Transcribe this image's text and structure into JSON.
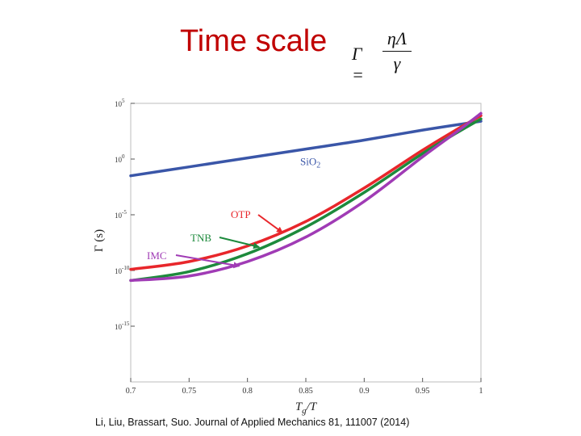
{
  "slide": {
    "title": "Time scale",
    "formula": {
      "lhs": "Γ =",
      "numerator": "ηΛ",
      "denominator": "γ"
    },
    "caption": "Li, Liu, Brassart, Suo.  Journal of Applied Mechanics 81, 111007 (2014)"
  },
  "chart_data": {
    "type": "line",
    "title": "",
    "xlabel": "T_g/T",
    "ylabel": "Γ (s)",
    "xlim": [
      0.7,
      1.0
    ],
    "ylim": [
      -20,
      5
    ],
    "yscale": "log10",
    "x_ticks": [
      {
        "value": 0.7,
        "label": "0.7"
      },
      {
        "value": 0.75,
        "label": "0.75"
      },
      {
        "value": 0.8,
        "label": "0.8"
      },
      {
        "value": 0.85,
        "label": "0.85"
      },
      {
        "value": 0.9,
        "label": "0.9"
      },
      {
        "value": 0.95,
        "label": "0.95"
      },
      {
        "value": 1.0,
        "label": "1"
      }
    ],
    "y_ticks": [
      {
        "value": 5,
        "base": "10",
        "exp": "5"
      },
      {
        "value": 0,
        "base": "10",
        "exp": "0"
      },
      {
        "value": -5,
        "base": "10",
        "exp": "-5"
      },
      {
        "value": -10,
        "base": "10",
        "exp": "-10"
      },
      {
        "value": -15,
        "base": "10",
        "exp": "-15"
      }
    ],
    "series": [
      {
        "name": "SiO2",
        "label": "SiO",
        "label_sub": "2",
        "color": "#3a56a8",
        "x": [
          0.7,
          0.75,
          0.8,
          0.85,
          0.9,
          0.95,
          1.0
        ],
        "y": [
          -1.5,
          -0.7,
          0.1,
          0.9,
          1.7,
          2.6,
          3.4
        ]
      },
      {
        "name": "OTP",
        "label": "OTP",
        "color": "#e8262b",
        "x": [
          0.7,
          0.75,
          0.8,
          0.85,
          0.9,
          0.95,
          0.98,
          1.0
        ],
        "y": [
          -9.9,
          -9.2,
          -7.8,
          -5.6,
          -2.6,
          0.8,
          2.7,
          3.9
        ]
      },
      {
        "name": "TNB",
        "label": "TNB",
        "color": "#1d8a3c",
        "x": [
          0.7,
          0.75,
          0.8,
          0.85,
          0.9,
          0.95,
          0.98,
          1.0
        ],
        "y": [
          -10.9,
          -10.1,
          -8.5,
          -6.1,
          -3.0,
          0.5,
          2.4,
          3.6
        ]
      },
      {
        "name": "IMC",
        "label": "IMC",
        "color": "#a03bb5",
        "x": [
          0.7,
          0.75,
          0.8,
          0.85,
          0.9,
          0.95,
          0.98,
          1.0
        ],
        "y": [
          -10.9,
          -10.5,
          -9.2,
          -7.0,
          -3.8,
          0.2,
          2.5,
          4.1
        ]
      }
    ],
    "annotations": [
      {
        "series": "SiO2",
        "text": "SiO2",
        "x": 0.85,
        "y": 0.9
      },
      {
        "series": "OTP",
        "text": "OTP",
        "arrow_to": {
          "x": 0.83,
          "y": -6.6
        }
      },
      {
        "series": "TNB",
        "text": "TNB",
        "arrow_to": {
          "x": 0.81,
          "y": -7.9
        }
      },
      {
        "series": "IMC",
        "text": "IMC",
        "arrow_to": {
          "x": 0.793,
          "y": -9.6
        }
      }
    ],
    "grid": false,
    "legend": "none"
  }
}
